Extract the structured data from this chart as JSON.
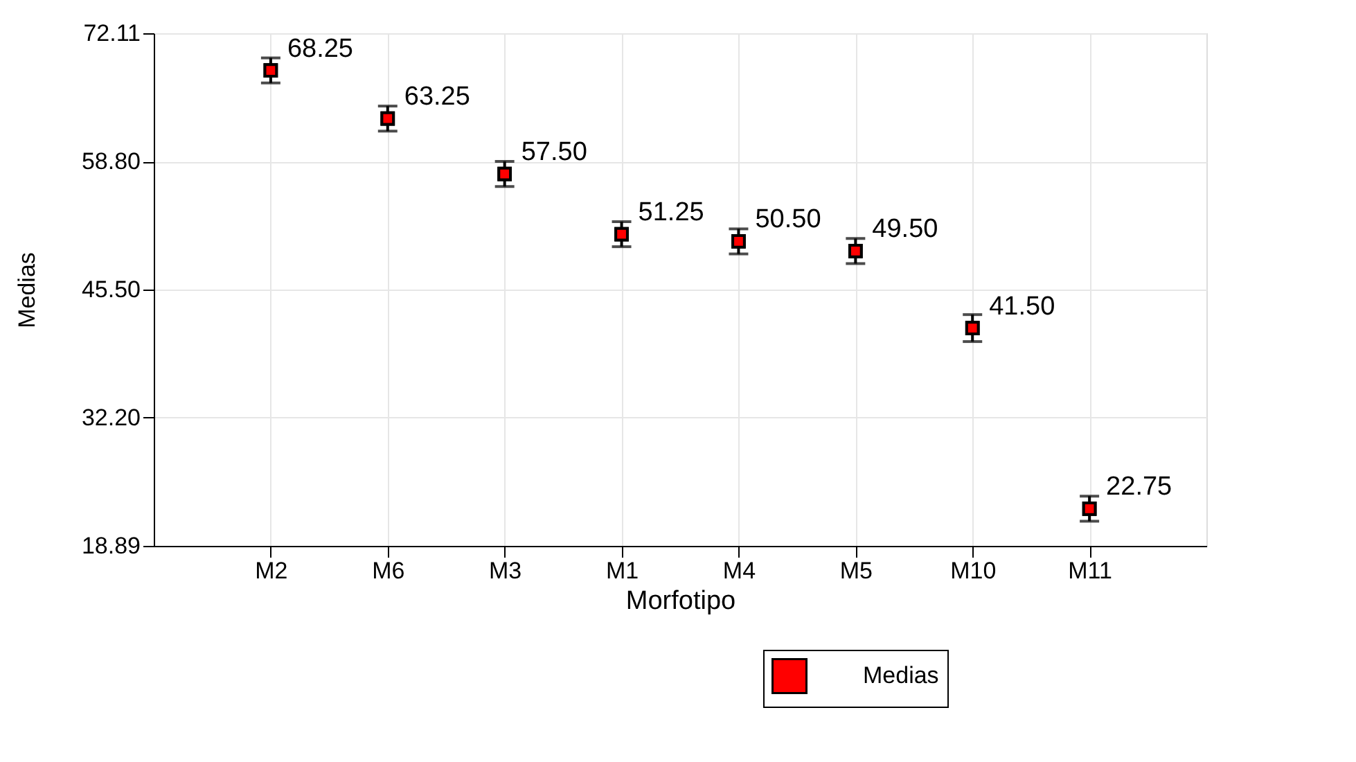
{
  "chart_data": {
    "type": "scatter",
    "xlabel": "Morfotipo",
    "ylabel": "Medias",
    "categories": [
      "M2",
      "M6",
      "M3",
      "M1",
      "M4",
      "M5",
      "M10",
      "M11"
    ],
    "series": [
      {
        "name": "Medias",
        "color": "#ff0000",
        "values": [
          68.25,
          63.25,
          57.5,
          51.25,
          50.5,
          49.5,
          41.5,
          22.75
        ],
        "errors": [
          1.3,
          1.3,
          1.3,
          1.3,
          1.3,
          1.3,
          1.4,
          1.3
        ],
        "value_labels": [
          "68.25",
          "63.25",
          "57.50",
          "51.25",
          "50.50",
          "49.50",
          "41.50",
          "22.75"
        ]
      }
    ],
    "ylim": [
      18.89,
      72.11
    ],
    "yticks": [
      {
        "value": 18.89,
        "label": "18.89"
      },
      {
        "value": 32.2,
        "label": "32.20"
      },
      {
        "value": 45.5,
        "label": "45.50"
      },
      {
        "value": 58.8,
        "label": "58.80"
      },
      {
        "value": 72.11,
        "label": "72.11"
      }
    ],
    "grid": true,
    "legend": "bottom",
    "marker": "square"
  }
}
